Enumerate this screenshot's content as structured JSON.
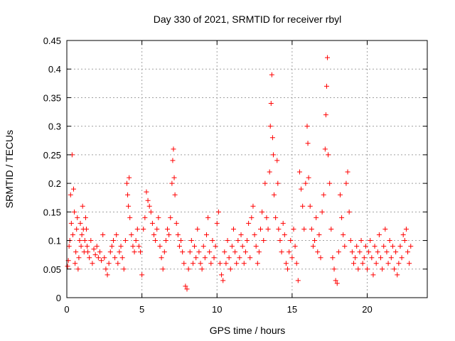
{
  "chart_data": {
    "type": "scatter",
    "title": "Day 330 of 2021, SRMTID for receiver rbyl",
    "xlabel": "GPS time / hours",
    "ylabel": "SRMTID / TECUs",
    "xlim": [
      0,
      24
    ],
    "ylim": [
      0,
      0.45
    ],
    "x_ticks": [
      0,
      5,
      10,
      15,
      20
    ],
    "x_tick_labels": [
      "0",
      "5",
      "10",
      "15",
      "20"
    ],
    "y_ticks": [
      0,
      0.05,
      0.1,
      0.15,
      0.2,
      0.25,
      0.3,
      0.35,
      0.4,
      0.45
    ],
    "y_tick_labels": [
      "0",
      "0.05",
      "0.1",
      "0.15",
      "0.2",
      "0.25",
      "0.3",
      "0.35",
      "0.4",
      "0.45"
    ],
    "grid": true,
    "marker": "+",
    "series": [
      {
        "name": "SRMTID",
        "color": "#ff0000",
        "points": [
          [
            0.05,
            0.055
          ],
          [
            0.1,
            0.065
          ],
          [
            0.15,
            0.09
          ],
          [
            0.2,
            0.1
          ],
          [
            0.25,
            0.18
          ],
          [
            0.3,
            0.13
          ],
          [
            0.35,
            0.25
          ],
          [
            0.4,
            0.11
          ],
          [
            0.45,
            0.19
          ],
          [
            0.5,
            0.15
          ],
          [
            0.55,
            0.06
          ],
          [
            0.6,
            0.08
          ],
          [
            0.65,
            0.12
          ],
          [
            0.7,
            0.14
          ],
          [
            0.75,
            0.05
          ],
          [
            0.8,
            0.07
          ],
          [
            0.85,
            0.1
          ],
          [
            0.9,
            0.13
          ],
          [
            0.95,
            0.09
          ],
          [
            1.0,
            0.11
          ],
          [
            1.05,
            0.16
          ],
          [
            1.1,
            0.12
          ],
          [
            1.15,
            0.08
          ],
          [
            1.2,
            0.1
          ],
          [
            1.25,
            0.14
          ],
          [
            1.3,
            0.12
          ],
          [
            1.35,
            0.09
          ],
          [
            1.4,
            0.08
          ],
          [
            1.5,
            0.07
          ],
          [
            1.6,
            0.1
          ],
          [
            1.7,
            0.06
          ],
          [
            1.8,
            0.085
          ],
          [
            1.9,
            0.075
          ],
          [
            2.0,
            0.09
          ],
          [
            2.1,
            0.07
          ],
          [
            2.2,
            0.08
          ],
          [
            2.3,
            0.065
          ],
          [
            2.4,
            0.11
          ],
          [
            2.5,
            0.07
          ],
          [
            2.6,
            0.05
          ],
          [
            2.7,
            0.04
          ],
          [
            2.8,
            0.06
          ],
          [
            2.9,
            0.08
          ],
          [
            3.0,
            0.09
          ],
          [
            3.1,
            0.1
          ],
          [
            3.2,
            0.07
          ],
          [
            3.3,
            0.11
          ],
          [
            3.4,
            0.06
          ],
          [
            3.5,
            0.08
          ],
          [
            3.6,
            0.09
          ],
          [
            3.7,
            0.07
          ],
          [
            3.8,
            0.05
          ],
          [
            3.9,
            0.1
          ],
          [
            4.0,
            0.2
          ],
          [
            4.05,
            0.18
          ],
          [
            4.1,
            0.16
          ],
          [
            4.15,
            0.21
          ],
          [
            4.2,
            0.14
          ],
          [
            4.3,
            0.11
          ],
          [
            4.4,
            0.09
          ],
          [
            4.5,
            0.08
          ],
          [
            4.6,
            0.1
          ],
          [
            4.7,
            0.12
          ],
          [
            4.8,
            0.09
          ],
          [
            4.9,
            0.08
          ],
          [
            5.0,
            0.04
          ],
          [
            5.1,
            0.12
          ],
          [
            5.2,
            0.14
          ],
          [
            5.3,
            0.185
          ],
          [
            5.4,
            0.17
          ],
          [
            5.5,
            0.16
          ],
          [
            5.6,
            0.15
          ],
          [
            5.7,
            0.13
          ],
          [
            5.8,
            0.11
          ],
          [
            5.9,
            0.1
          ],
          [
            6.0,
            0.12
          ],
          [
            6.1,
            0.14
          ],
          [
            6.2,
            0.09
          ],
          [
            6.3,
            0.07
          ],
          [
            6.4,
            0.05
          ],
          [
            6.5,
            0.08
          ],
          [
            6.6,
            0.1
          ],
          [
            6.7,
            0.12
          ],
          [
            6.8,
            0.11
          ],
          [
            6.9,
            0.14
          ],
          [
            7.0,
            0.2
          ],
          [
            7.05,
            0.24
          ],
          [
            7.1,
            0.26
          ],
          [
            7.15,
            0.21
          ],
          [
            7.2,
            0.18
          ],
          [
            7.3,
            0.13
          ],
          [
            7.4,
            0.11
          ],
          [
            7.5,
            0.09
          ],
          [
            7.6,
            0.1
          ],
          [
            7.7,
            0.08
          ],
          [
            7.8,
            0.06
          ],
          [
            7.9,
            0.02
          ],
          [
            8.0,
            0.015
          ],
          [
            8.1,
            0.05
          ],
          [
            8.2,
            0.08
          ],
          [
            8.3,
            0.1
          ],
          [
            8.4,
            0.06
          ],
          [
            8.5,
            0.09
          ],
          [
            8.6,
            0.07
          ],
          [
            8.7,
            0.12
          ],
          [
            8.8,
            0.08
          ],
          [
            8.9,
            0.06
          ],
          [
            9.0,
            0.05
          ],
          [
            9.1,
            0.09
          ],
          [
            9.2,
            0.07
          ],
          [
            9.3,
            0.11
          ],
          [
            9.4,
            0.14
          ],
          [
            9.5,
            0.08
          ],
          [
            9.6,
            0.06
          ],
          [
            9.7,
            0.1
          ],
          [
            9.8,
            0.07
          ],
          [
            9.9,
            0.09
          ],
          [
            10.0,
            0.13
          ],
          [
            10.1,
            0.15
          ],
          [
            10.2,
            0.06
          ],
          [
            10.3,
            0.04
          ],
          [
            10.4,
            0.03
          ],
          [
            10.5,
            0.08
          ],
          [
            10.6,
            0.06
          ],
          [
            10.7,
            0.1
          ],
          [
            10.8,
            0.07
          ],
          [
            10.9,
            0.05
          ],
          [
            11.0,
            0.09
          ],
          [
            11.1,
            0.12
          ],
          [
            11.2,
            0.08
          ],
          [
            11.3,
            0.06
          ],
          [
            11.4,
            0.1
          ],
          [
            11.5,
            0.07
          ],
          [
            11.6,
            0.11
          ],
          [
            11.7,
            0.09
          ],
          [
            11.8,
            0.06
          ],
          [
            11.9,
            0.08
          ],
          [
            12.0,
            0.1
          ],
          [
            12.1,
            0.13
          ],
          [
            12.2,
            0.07
          ],
          [
            12.3,
            0.14
          ],
          [
            12.4,
            0.16
          ],
          [
            12.5,
            0.11
          ],
          [
            12.6,
            0.09
          ],
          [
            12.7,
            0.06
          ],
          [
            12.8,
            0.08
          ],
          [
            12.9,
            0.12
          ],
          [
            13.0,
            0.15
          ],
          [
            13.1,
            0.1
          ],
          [
            13.2,
            0.2
          ],
          [
            13.3,
            0.14
          ],
          [
            13.4,
            0.12
          ],
          [
            13.5,
            0.22
          ],
          [
            13.55,
            0.3
          ],
          [
            13.6,
            0.34
          ],
          [
            13.65,
            0.39
          ],
          [
            13.7,
            0.28
          ],
          [
            13.75,
            0.25
          ],
          [
            13.8,
            0.18
          ],
          [
            13.9,
            0.14
          ],
          [
            14.0,
            0.24
          ],
          [
            14.05,
            0.2
          ],
          [
            14.1,
            0.12
          ],
          [
            14.2,
            0.1
          ],
          [
            14.3,
            0.08
          ],
          [
            14.4,
            0.13
          ],
          [
            14.5,
            0.11
          ],
          [
            14.6,
            0.06
          ],
          [
            14.7,
            0.05
          ],
          [
            14.8,
            0.08
          ],
          [
            14.9,
            0.1
          ],
          [
            15.0,
            0.07
          ],
          [
            15.1,
            0.12
          ],
          [
            15.2,
            0.09
          ],
          [
            15.3,
            0.06
          ],
          [
            15.4,
            0.03
          ],
          [
            15.5,
            0.22
          ],
          [
            15.6,
            0.19
          ],
          [
            15.7,
            0.16
          ],
          [
            15.8,
            0.12
          ],
          [
            15.9,
            0.2
          ],
          [
            16.0,
            0.3
          ],
          [
            16.05,
            0.27
          ],
          [
            16.1,
            0.21
          ],
          [
            16.2,
            0.16
          ],
          [
            16.3,
            0.12
          ],
          [
            16.4,
            0.09
          ],
          [
            16.5,
            0.1
          ],
          [
            16.6,
            0.14
          ],
          [
            16.7,
            0.08
          ],
          [
            16.8,
            0.11
          ],
          [
            16.9,
            0.07
          ],
          [
            17.0,
            0.15
          ],
          [
            17.1,
            0.18
          ],
          [
            17.2,
            0.26
          ],
          [
            17.25,
            0.32
          ],
          [
            17.3,
            0.37
          ],
          [
            17.35,
            0.42
          ],
          [
            17.4,
            0.25
          ],
          [
            17.5,
            0.2
          ],
          [
            17.6,
            0.12
          ],
          [
            17.7,
            0.07
          ],
          [
            17.8,
            0.05
          ],
          [
            17.9,
            0.03
          ],
          [
            18.0,
            0.025
          ],
          [
            18.1,
            0.08
          ],
          [
            18.2,
            0.18
          ],
          [
            18.3,
            0.14
          ],
          [
            18.4,
            0.11
          ],
          [
            18.5,
            0.09
          ],
          [
            18.6,
            0.2
          ],
          [
            18.7,
            0.22
          ],
          [
            18.8,
            0.15
          ],
          [
            18.9,
            0.1
          ],
          [
            19.0,
            0.08
          ],
          [
            19.1,
            0.06
          ],
          [
            19.2,
            0.07
          ],
          [
            19.3,
            0.09
          ],
          [
            19.4,
            0.05
          ],
          [
            19.5,
            0.08
          ],
          [
            19.6,
            0.1
          ],
          [
            19.7,
            0.06
          ],
          [
            19.8,
            0.07
          ],
          [
            19.9,
            0.09
          ],
          [
            20.0,
            0.05
          ],
          [
            20.1,
            0.08
          ],
          [
            20.2,
            0.1
          ],
          [
            20.3,
            0.07
          ],
          [
            20.4,
            0.04
          ],
          [
            20.5,
            0.09
          ],
          [
            20.6,
            0.06
          ],
          [
            20.7,
            0.08
          ],
          [
            20.8,
            0.11
          ],
          [
            20.9,
            0.07
          ],
          [
            21.0,
            0.05
          ],
          [
            21.1,
            0.09
          ],
          [
            21.2,
            0.12
          ],
          [
            21.3,
            0.08
          ],
          [
            21.4,
            0.06
          ],
          [
            21.5,
            0.1
          ],
          [
            21.6,
            0.07
          ],
          [
            21.7,
            0.09
          ],
          [
            21.8,
            0.05
          ],
          [
            21.9,
            0.08
          ],
          [
            22.0,
            0.04
          ],
          [
            22.1,
            0.06
          ],
          [
            22.2,
            0.09
          ],
          [
            22.3,
            0.07
          ],
          [
            22.4,
            0.11
          ],
          [
            22.5,
            0.1
          ],
          [
            22.6,
            0.12
          ],
          [
            22.7,
            0.08
          ],
          [
            22.8,
            0.06
          ],
          [
            22.9,
            0.09
          ]
        ]
      }
    ]
  }
}
